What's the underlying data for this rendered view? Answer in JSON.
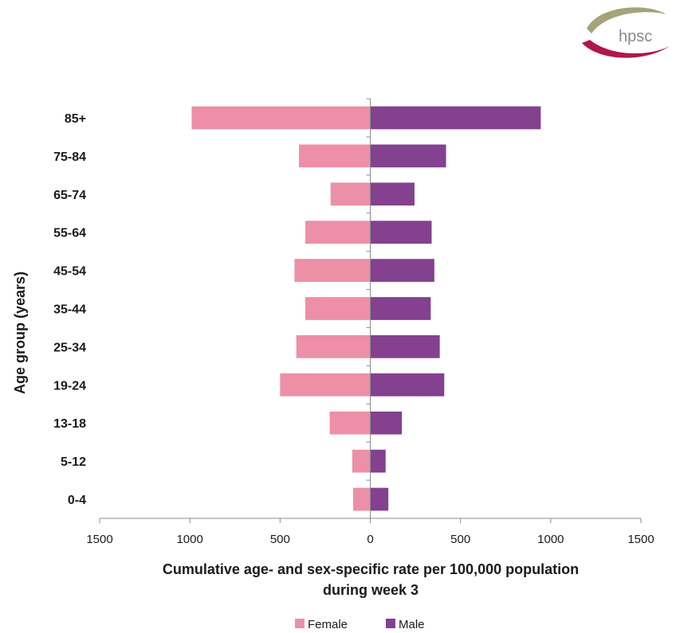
{
  "logo": {
    "text": "hpsc"
  },
  "chart_data": {
    "type": "bar",
    "orientation": "horizontal",
    "title": "",
    "categories": [
      "85+",
      "75-84",
      "65-74",
      "55-64",
      "45-54",
      "35-44",
      "25-34",
      "19-24",
      "13-18",
      "5-12",
      "0-4"
    ],
    "series": [
      {
        "name": "Female",
        "color": "#ec8fa7",
        "values": [
          990,
          395,
          220,
          360,
          420,
          360,
          410,
          500,
          225,
          100,
          95
        ]
      },
      {
        "name": "Male",
        "color": "#83418f",
        "values": [
          945,
          420,
          245,
          340,
          355,
          335,
          385,
          410,
          175,
          85,
          100
        ]
      }
    ],
    "xlim": [
      -1500,
      1500
    ],
    "xticks": [
      -1500,
      -1000,
      -500,
      0,
      500,
      1000,
      1500
    ],
    "xtick_labels": [
      "1500",
      "1000",
      "500",
      "0",
      "500",
      "1000",
      "1500"
    ],
    "xlabel_line1": "Cumulative age- and sex-specific rate per 100,000 population",
    "xlabel_line2": "during week 3",
    "ylabel": "Age group (years)",
    "legend_position": "bottom",
    "grid": false
  }
}
